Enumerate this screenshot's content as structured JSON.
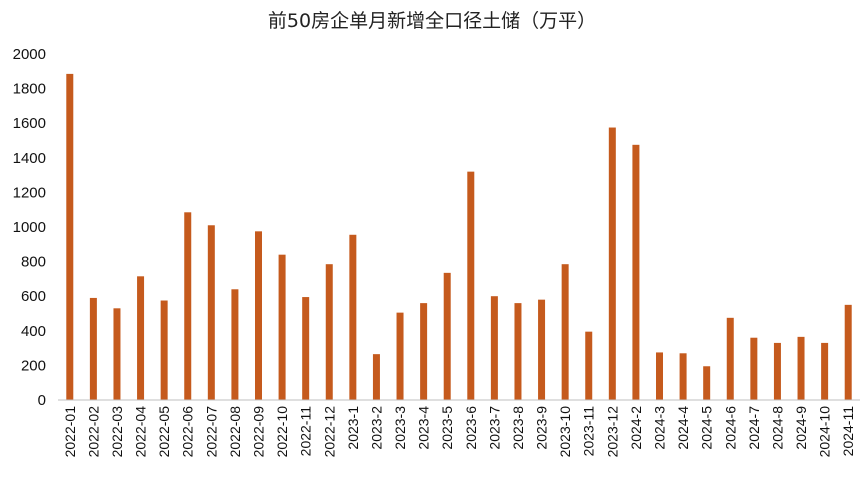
{
  "chart_data": {
    "type": "bar",
    "title": "前50房企单月新增全口径土储（万平）",
    "xlabel": "",
    "ylabel": "",
    "ylim": [
      0,
      2000
    ],
    "yticks": [
      0,
      200,
      400,
      600,
      800,
      1000,
      1200,
      1400,
      1600,
      1800,
      2000
    ],
    "grid": false,
    "legend": "none",
    "bar_color": "#C55A1D",
    "categories": [
      "2022-01",
      "2022-02",
      "2022-03",
      "2022-04",
      "2022-05",
      "2022-06",
      "2022-07",
      "2022-08",
      "2022-09",
      "2022-10",
      "2022-11",
      "2022-12",
      "2023-1",
      "2023-2",
      "2023-3",
      "2023-4",
      "2023-5",
      "2023-6",
      "2023-7",
      "2023-8",
      "2023-9",
      "2023-10",
      "2023-11",
      "2023-12",
      "2024-2",
      "2024-3",
      "2024-4",
      "2024-5",
      "2024-6",
      "2024-7",
      "2024-8",
      "2024-9",
      "2024-10",
      "2024-11"
    ],
    "values": [
      1885,
      590,
      530,
      715,
      575,
      1085,
      1010,
      640,
      975,
      840,
      595,
      785,
      955,
      265,
      505,
      560,
      735,
      1320,
      600,
      560,
      580,
      785,
      395,
      1575,
      1475,
      275,
      270,
      195,
      475,
      360,
      330,
      365,
      330,
      550
    ]
  }
}
